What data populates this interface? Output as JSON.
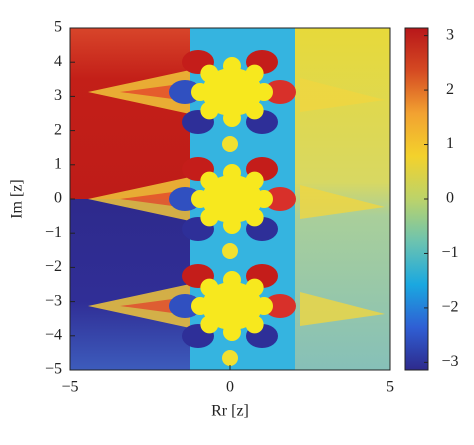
{
  "chart_data": {
    "type": "heatmap",
    "xlabel": "Rr [z]",
    "ylabel": "Im [z]",
    "xlim": [
      -5,
      5
    ],
    "ylim": [
      -5,
      5
    ],
    "xticks": [
      {
        "value": -5,
        "label": "−5"
      },
      0,
      5
    ],
    "yticks": [
      {
        "value": -5,
        "label": "−5"
      },
      {
        "value": -4,
        "label": "−4"
      },
      {
        "value": -3,
        "label": "−3"
      },
      {
        "value": -2,
        "label": "−2"
      },
      {
        "value": -1,
        "label": "−1"
      },
      0,
      1,
      2,
      3,
      4,
      5
    ],
    "colorbar": {
      "lim": [
        -3.14,
        3.14
      ],
      "ticks": [
        {
          "value": -3,
          "label": "−3"
        },
        {
          "value": -2,
          "label": "−2"
        },
        {
          "value": -1,
          "label": "−1"
        },
        0,
        1,
        2,
        3
      ],
      "colors": [
        "#2e2a8c",
        "#2f5fd4",
        "#1aa8e0",
        "#6cc3b0",
        "#bcd36a",
        "#f3d22c",
        "#f2a231",
        "#d54a22",
        "#b8171a"
      ]
    }
  }
}
